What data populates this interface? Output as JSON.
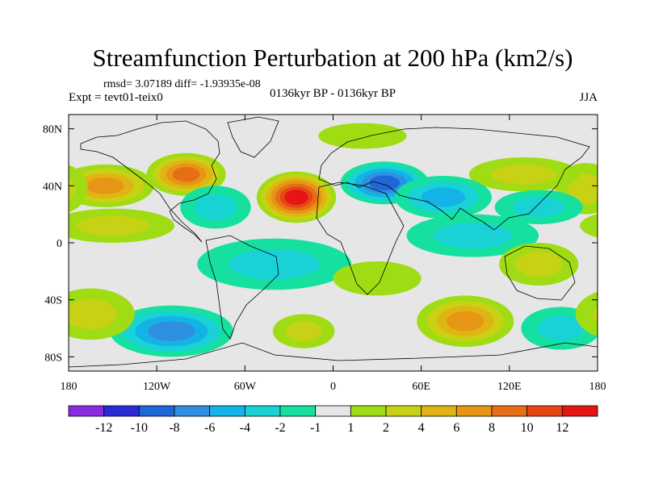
{
  "chart_data": {
    "type": "heatmap",
    "title": "Streamfunction Perturbation at 200 hPa (km2/s)",
    "stats": "rmsd= 3.07189 diff= -1.93935e-08",
    "left_label": "Expt = tevt01-teix0",
    "center_label": "0136kyr BP - 0136kyr BP",
    "right_label": "JJA",
    "lon_range": [
      -180,
      180
    ],
    "lat_range": [
      -90,
      90
    ],
    "x_ticks": [
      {
        "value": -180,
        "label": "180"
      },
      {
        "value": -120,
        "label": "120W"
      },
      {
        "value": -60,
        "label": "60W"
      },
      {
        "value": 0,
        "label": "0"
      },
      {
        "value": 60,
        "label": "60E"
      },
      {
        "value": 120,
        "label": "120E"
      },
      {
        "value": 180,
        "label": "180"
      }
    ],
    "y_ticks": [
      {
        "value": 80,
        "label": "80N"
      },
      {
        "value": 40,
        "label": "40N"
      },
      {
        "value": 0,
        "label": "0"
      },
      {
        "value": -40,
        "label": "40S"
      },
      {
        "value": -80,
        "label": "80S"
      }
    ],
    "colorbar": {
      "colors": [
        "#8a2be2",
        "#2b2bd6",
        "#1f66d6",
        "#2f8fe0",
        "#14b3e6",
        "#19d2d6",
        "#16e0a0",
        "#e6e6e6",
        "#a0dc14",
        "#c8d214",
        "#e0b414",
        "#e69614",
        "#e66e14",
        "#e64614",
        "#e61414"
      ],
      "labels": [
        "-12",
        "-10",
        "-8",
        "-6",
        "-4",
        "-2",
        "-1",
        "1",
        "2",
        "4",
        "6",
        "8",
        "10",
        "12"
      ]
    },
    "field": [
      {
        "lon": -25,
        "lat": 32,
        "value": 12,
        "spread_lon": 18,
        "spread_lat": 12
      },
      {
        "lon": -100,
        "lat": 48,
        "value": 8,
        "spread_lon": 18,
        "spread_lat": 10
      },
      {
        "lon": -155,
        "lat": 40,
        "value": 6,
        "spread_lon": 22,
        "spread_lat": 10
      },
      {
        "lon": 172,
        "lat": 38,
        "value": 4,
        "spread_lon": 14,
        "spread_lat": 12
      },
      {
        "lon": 130,
        "lat": 48,
        "value": 3,
        "spread_lon": 25,
        "spread_lat": 8
      },
      {
        "lon": 20,
        "lat": 75,
        "value": 2,
        "spread_lon": 20,
        "spread_lat": 6
      },
      {
        "lon": -150,
        "lat": 12,
        "value": 3,
        "spread_lon": 28,
        "spread_lat": 8
      },
      {
        "lon": -80,
        "lat": 25,
        "value": -4,
        "spread_lon": 16,
        "spread_lat": 10
      },
      {
        "lon": 35,
        "lat": 42,
        "value": -8,
        "spread_lon": 20,
        "spread_lat": 10
      },
      {
        "lon": 75,
        "lat": 32,
        "value": -5,
        "spread_lon": 22,
        "spread_lat": 10
      },
      {
        "lon": 95,
        "lat": 5,
        "value": -3,
        "spread_lon": 30,
        "spread_lat": 10
      },
      {
        "lon": 140,
        "lat": 25,
        "value": -3,
        "spread_lon": 20,
        "spread_lat": 8
      },
      {
        "lon": -40,
        "lat": -15,
        "value": -4,
        "spread_lon": 35,
        "spread_lat": 12
      },
      {
        "lon": -110,
        "lat": -62,
        "value": -6,
        "spread_lon": 28,
        "spread_lat": 12
      },
      {
        "lon": 140,
        "lat": -15,
        "value": 4,
        "spread_lon": 18,
        "spread_lat": 10
      },
      {
        "lon": 90,
        "lat": -55,
        "value": 6,
        "spread_lon": 22,
        "spread_lat": 12
      },
      {
        "lon": 155,
        "lat": -60,
        "value": -3,
        "spread_lon": 18,
        "spread_lat": 10
      },
      {
        "lon": -165,
        "lat": -50,
        "value": 4,
        "spread_lon": 20,
        "spread_lat": 12
      },
      {
        "lon": -20,
        "lat": -62,
        "value": 3,
        "spread_lon": 14,
        "spread_lat": 8
      },
      {
        "lon": 30,
        "lat": -25,
        "value": 2,
        "spread_lon": 20,
        "spread_lat": 8
      }
    ]
  }
}
